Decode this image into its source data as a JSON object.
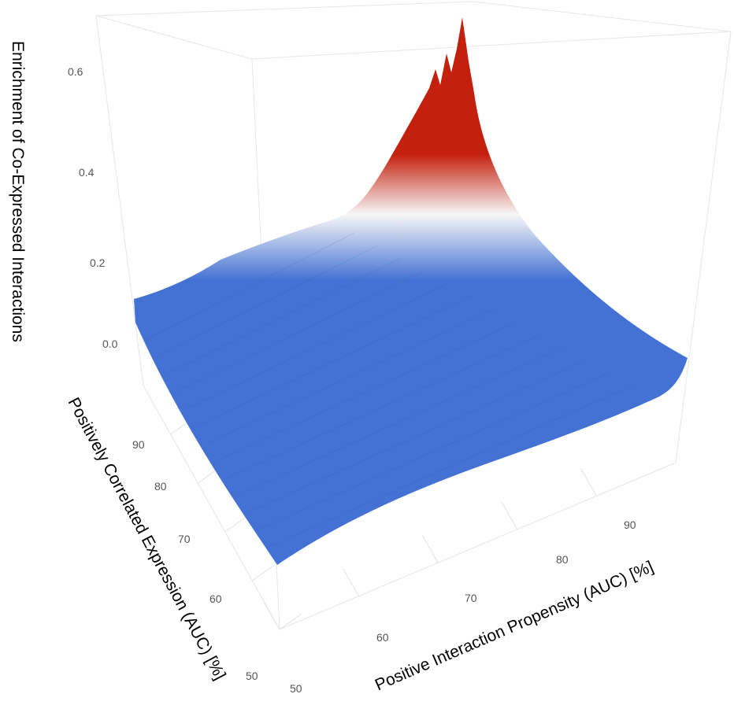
{
  "chart_data": {
    "type": "surface3d",
    "title": "",
    "x_axis": {
      "label": "Positive Interaction Propensity (AUC) [%]",
      "ticks": [
        50,
        60,
        70,
        80,
        90
      ],
      "range": [
        50,
        100
      ]
    },
    "y_axis": {
      "label": "Positively Correlated Expression (AUC) [%]",
      "ticks": [
        50,
        60,
        70,
        80,
        90
      ],
      "range": [
        50,
        100
      ]
    },
    "z_axis": {
      "label": "Enrichment of Co-Expressed Interactions",
      "ticks": [
        "0.0",
        "0.2",
        "0.4",
        "0.6"
      ],
      "range": [
        -0.1,
        0.7
      ]
    },
    "colorscale": [
      "#4472d4",
      "#f7f7f7",
      "#c4200e"
    ],
    "surface_samples": [
      {
        "x": 50,
        "y": 50,
        "z": -0.02
      },
      {
        "x": 100,
        "y": 50,
        "z": -0.02
      },
      {
        "x": 50,
        "y": 100,
        "z": 0.0
      },
      {
        "x": 100,
        "y": 100,
        "z": 0.0
      },
      {
        "x": 75,
        "y": 75,
        "z": 0.15
      },
      {
        "x": 85,
        "y": 85,
        "z": 0.3
      },
      {
        "x": 95,
        "y": 95,
        "z": 0.67
      }
    ],
    "grid": true
  }
}
